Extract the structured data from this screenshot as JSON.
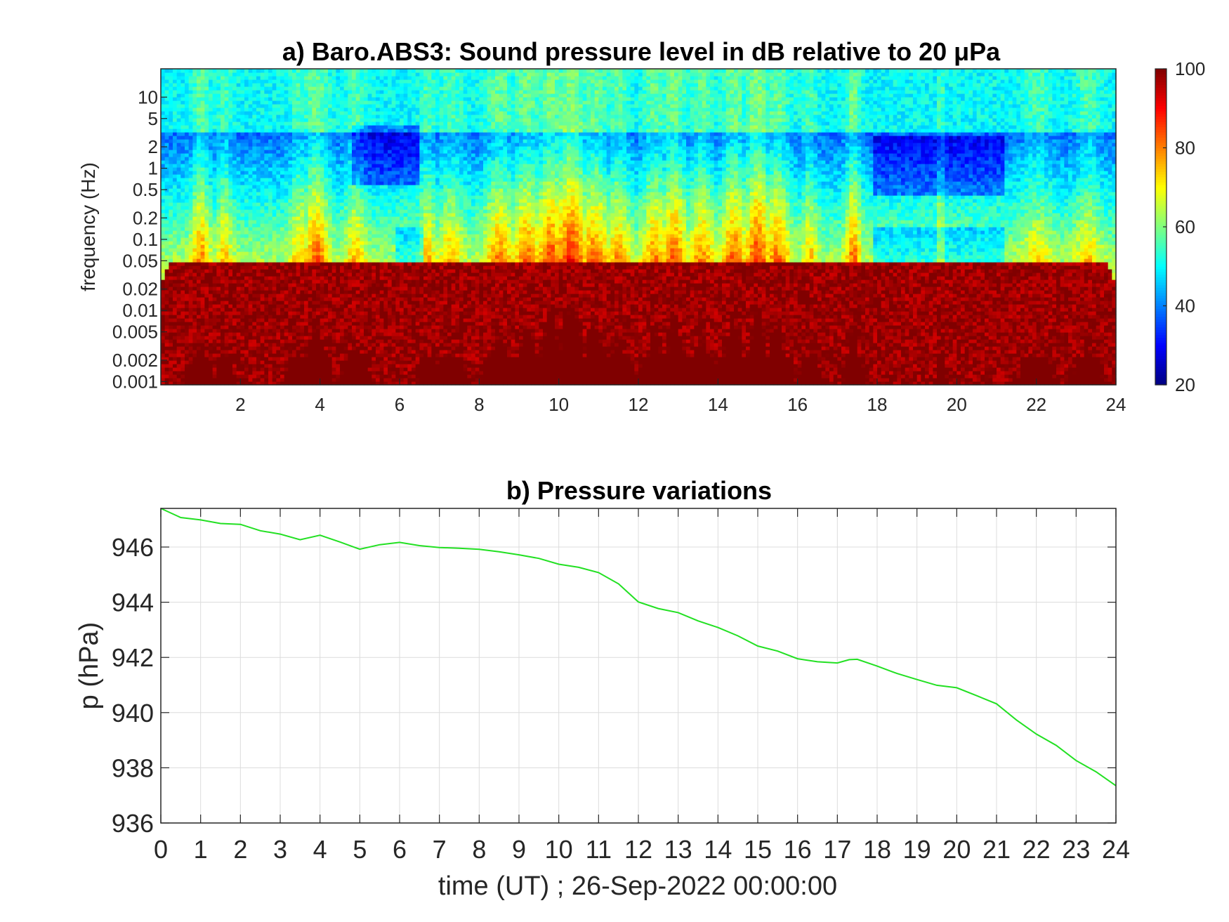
{
  "chart_data": [
    {
      "type": "heatmap",
      "title": "a) Baro.ABS3: Sound pressure level in dB relative to 20 μPa",
      "xlabel": "",
      "ylabel": "frequency (Hz)",
      "x_ticks": [
        "2",
        "4",
        "6",
        "8",
        "10",
        "12",
        "14",
        "16",
        "18",
        "20",
        "22",
        "24"
      ],
      "x_tick_values": [
        2,
        4,
        6,
        8,
        10,
        12,
        14,
        16,
        18,
        20,
        22,
        24
      ],
      "xlim": [
        0,
        24
      ],
      "y_scale": "log",
      "y_ticks": [
        "0.001",
        "0.002",
        "0.005",
        "0.01",
        "0.02",
        "0.05",
        "0.1",
        "0.2",
        "0.5",
        "1",
        "2",
        "5",
        "10"
      ],
      "y_tick_values": [
        0.001,
        0.002,
        0.005,
        0.01,
        0.02,
        0.05,
        0.1,
        0.2,
        0.5,
        1,
        2,
        5,
        10
      ],
      "ylim": [
        0.0009,
        25
      ],
      "colormap": "jet",
      "colorbar": {
        "ticks": [
          "20",
          "40",
          "60",
          "80",
          "100"
        ],
        "tick_values": [
          20,
          40,
          60,
          80,
          100
        ],
        "clim": [
          20,
          100
        ],
        "position": "right"
      },
      "bursts": [
        {
          "t": 1.0,
          "w": 0.22,
          "strength": 0.7,
          "ftop": 3
        },
        {
          "t": 1.6,
          "w": 0.18,
          "strength": 0.55,
          "ftop": 2
        },
        {
          "t": 3.5,
          "w": 0.25,
          "strength": 0.55,
          "ftop": 2
        },
        {
          "t": 3.9,
          "w": 0.3,
          "strength": 0.85,
          "ftop": 3
        },
        {
          "t": 4.9,
          "w": 0.25,
          "strength": 0.6,
          "ftop": 1
        },
        {
          "t": 6.7,
          "w": 0.2,
          "strength": 0.55,
          "ftop": 2
        },
        {
          "t": 7.3,
          "w": 0.3,
          "strength": 0.6,
          "ftop": 1
        },
        {
          "t": 8.5,
          "w": 0.35,
          "strength": 0.75,
          "ftop": 2
        },
        {
          "t": 9.2,
          "w": 0.35,
          "strength": 0.8,
          "ftop": 3
        },
        {
          "t": 9.8,
          "w": 0.35,
          "strength": 0.9,
          "ftop": 5
        },
        {
          "t": 10.3,
          "w": 0.4,
          "strength": 1.0,
          "ftop": 10
        },
        {
          "t": 10.9,
          "w": 0.35,
          "strength": 0.8,
          "ftop": 3
        },
        {
          "t": 11.5,
          "w": 0.3,
          "strength": 0.7,
          "ftop": 2
        },
        {
          "t": 12.4,
          "w": 0.3,
          "strength": 0.75,
          "ftop": 2
        },
        {
          "t": 12.9,
          "w": 0.3,
          "strength": 0.85,
          "ftop": 4
        },
        {
          "t": 13.6,
          "w": 0.3,
          "strength": 0.75,
          "ftop": 2
        },
        {
          "t": 14.4,
          "w": 0.3,
          "strength": 0.85,
          "ftop": 3
        },
        {
          "t": 15.0,
          "w": 0.3,
          "strength": 0.95,
          "ftop": 8
        },
        {
          "t": 15.5,
          "w": 0.3,
          "strength": 0.8,
          "ftop": 3
        },
        {
          "t": 16.3,
          "w": 0.18,
          "strength": 0.6,
          "ftop": 1
        },
        {
          "t": 17.4,
          "w": 0.18,
          "strength": 0.85,
          "ftop": 2
        },
        {
          "t": 19.6,
          "w": 0.08,
          "strength": 0.6,
          "ftop": 2
        },
        {
          "t": 22.0,
          "w": 0.35,
          "strength": 0.55,
          "ftop": 0.3
        },
        {
          "t": 23.3,
          "w": 0.3,
          "strength": 0.6,
          "ftop": 0.5
        }
      ],
      "quiet_bands": [
        {
          "t0": 5.9,
          "t1": 6.6,
          "fmin": 0.04,
          "fmax": 0.15
        },
        {
          "t0": 17.9,
          "t1": 21.2,
          "fmin": 0.04,
          "fmax": 0.15
        },
        {
          "t0": 17.9,
          "t1": 21.2,
          "fmin": 0.4,
          "fmax": 3
        },
        {
          "t0": 4.8,
          "t1": 6.5,
          "fmin": 0.6,
          "fmax": 4
        }
      ]
    },
    {
      "type": "line",
      "title": "b) Pressure variations",
      "xlabel": "time (UT) ; 26-Sep-2022 00:00:00",
      "ylabel": "p (hPa)",
      "x_ticks": [
        "0",
        "1",
        "2",
        "3",
        "4",
        "5",
        "6",
        "7",
        "8",
        "9",
        "10",
        "11",
        "12",
        "13",
        "14",
        "15",
        "16",
        "17",
        "18",
        "19",
        "20",
        "21",
        "22",
        "23",
        "24"
      ],
      "x_tick_values": [
        0,
        1,
        2,
        3,
        4,
        5,
        6,
        7,
        8,
        9,
        10,
        11,
        12,
        13,
        14,
        15,
        16,
        17,
        18,
        19,
        20,
        21,
        22,
        23,
        24
      ],
      "y_ticks": [
        "936",
        "938",
        "940",
        "942",
        "944",
        "946"
      ],
      "y_tick_values": [
        936,
        938,
        940,
        942,
        944,
        946
      ],
      "xlim": [
        0,
        24
      ],
      "ylim": [
        936,
        947.4
      ],
      "grid": true,
      "line_color": "#22e022",
      "series": [
        {
          "x": [
            0,
            0.5,
            1,
            1.5,
            2,
            2.5,
            3,
            3.5,
            4,
            4.5,
            5,
            5.5,
            6,
            6.5,
            7,
            7.5,
            8,
            8.5,
            9,
            9.5,
            10,
            10.5,
            11,
            11.5,
            12,
            12.5,
            13,
            13.5,
            14,
            14.5,
            15,
            15.5,
            16,
            16.5,
            17,
            17.3,
            17.5,
            18,
            18.5,
            19,
            19.5,
            20,
            20.5,
            21,
            21.5,
            22,
            22.5,
            23,
            23.5,
            24
          ],
          "y": [
            947.4,
            947.1,
            946.95,
            946.85,
            946.8,
            946.6,
            946.45,
            946.3,
            946.4,
            946.15,
            945.95,
            946.05,
            946.2,
            946.05,
            945.95,
            945.95,
            945.9,
            945.8,
            945.7,
            945.55,
            945.4,
            945.25,
            945.1,
            944.7,
            944.0,
            943.75,
            943.6,
            943.35,
            943.1,
            942.8,
            942.45,
            942.25,
            941.95,
            941.85,
            941.8,
            941.9,
            941.95,
            941.65,
            941.45,
            941.2,
            941.0,
            940.9,
            940.6,
            940.35,
            939.75,
            939.25,
            938.85,
            938.3,
            937.85,
            937.35
          ]
        }
      ]
    }
  ]
}
